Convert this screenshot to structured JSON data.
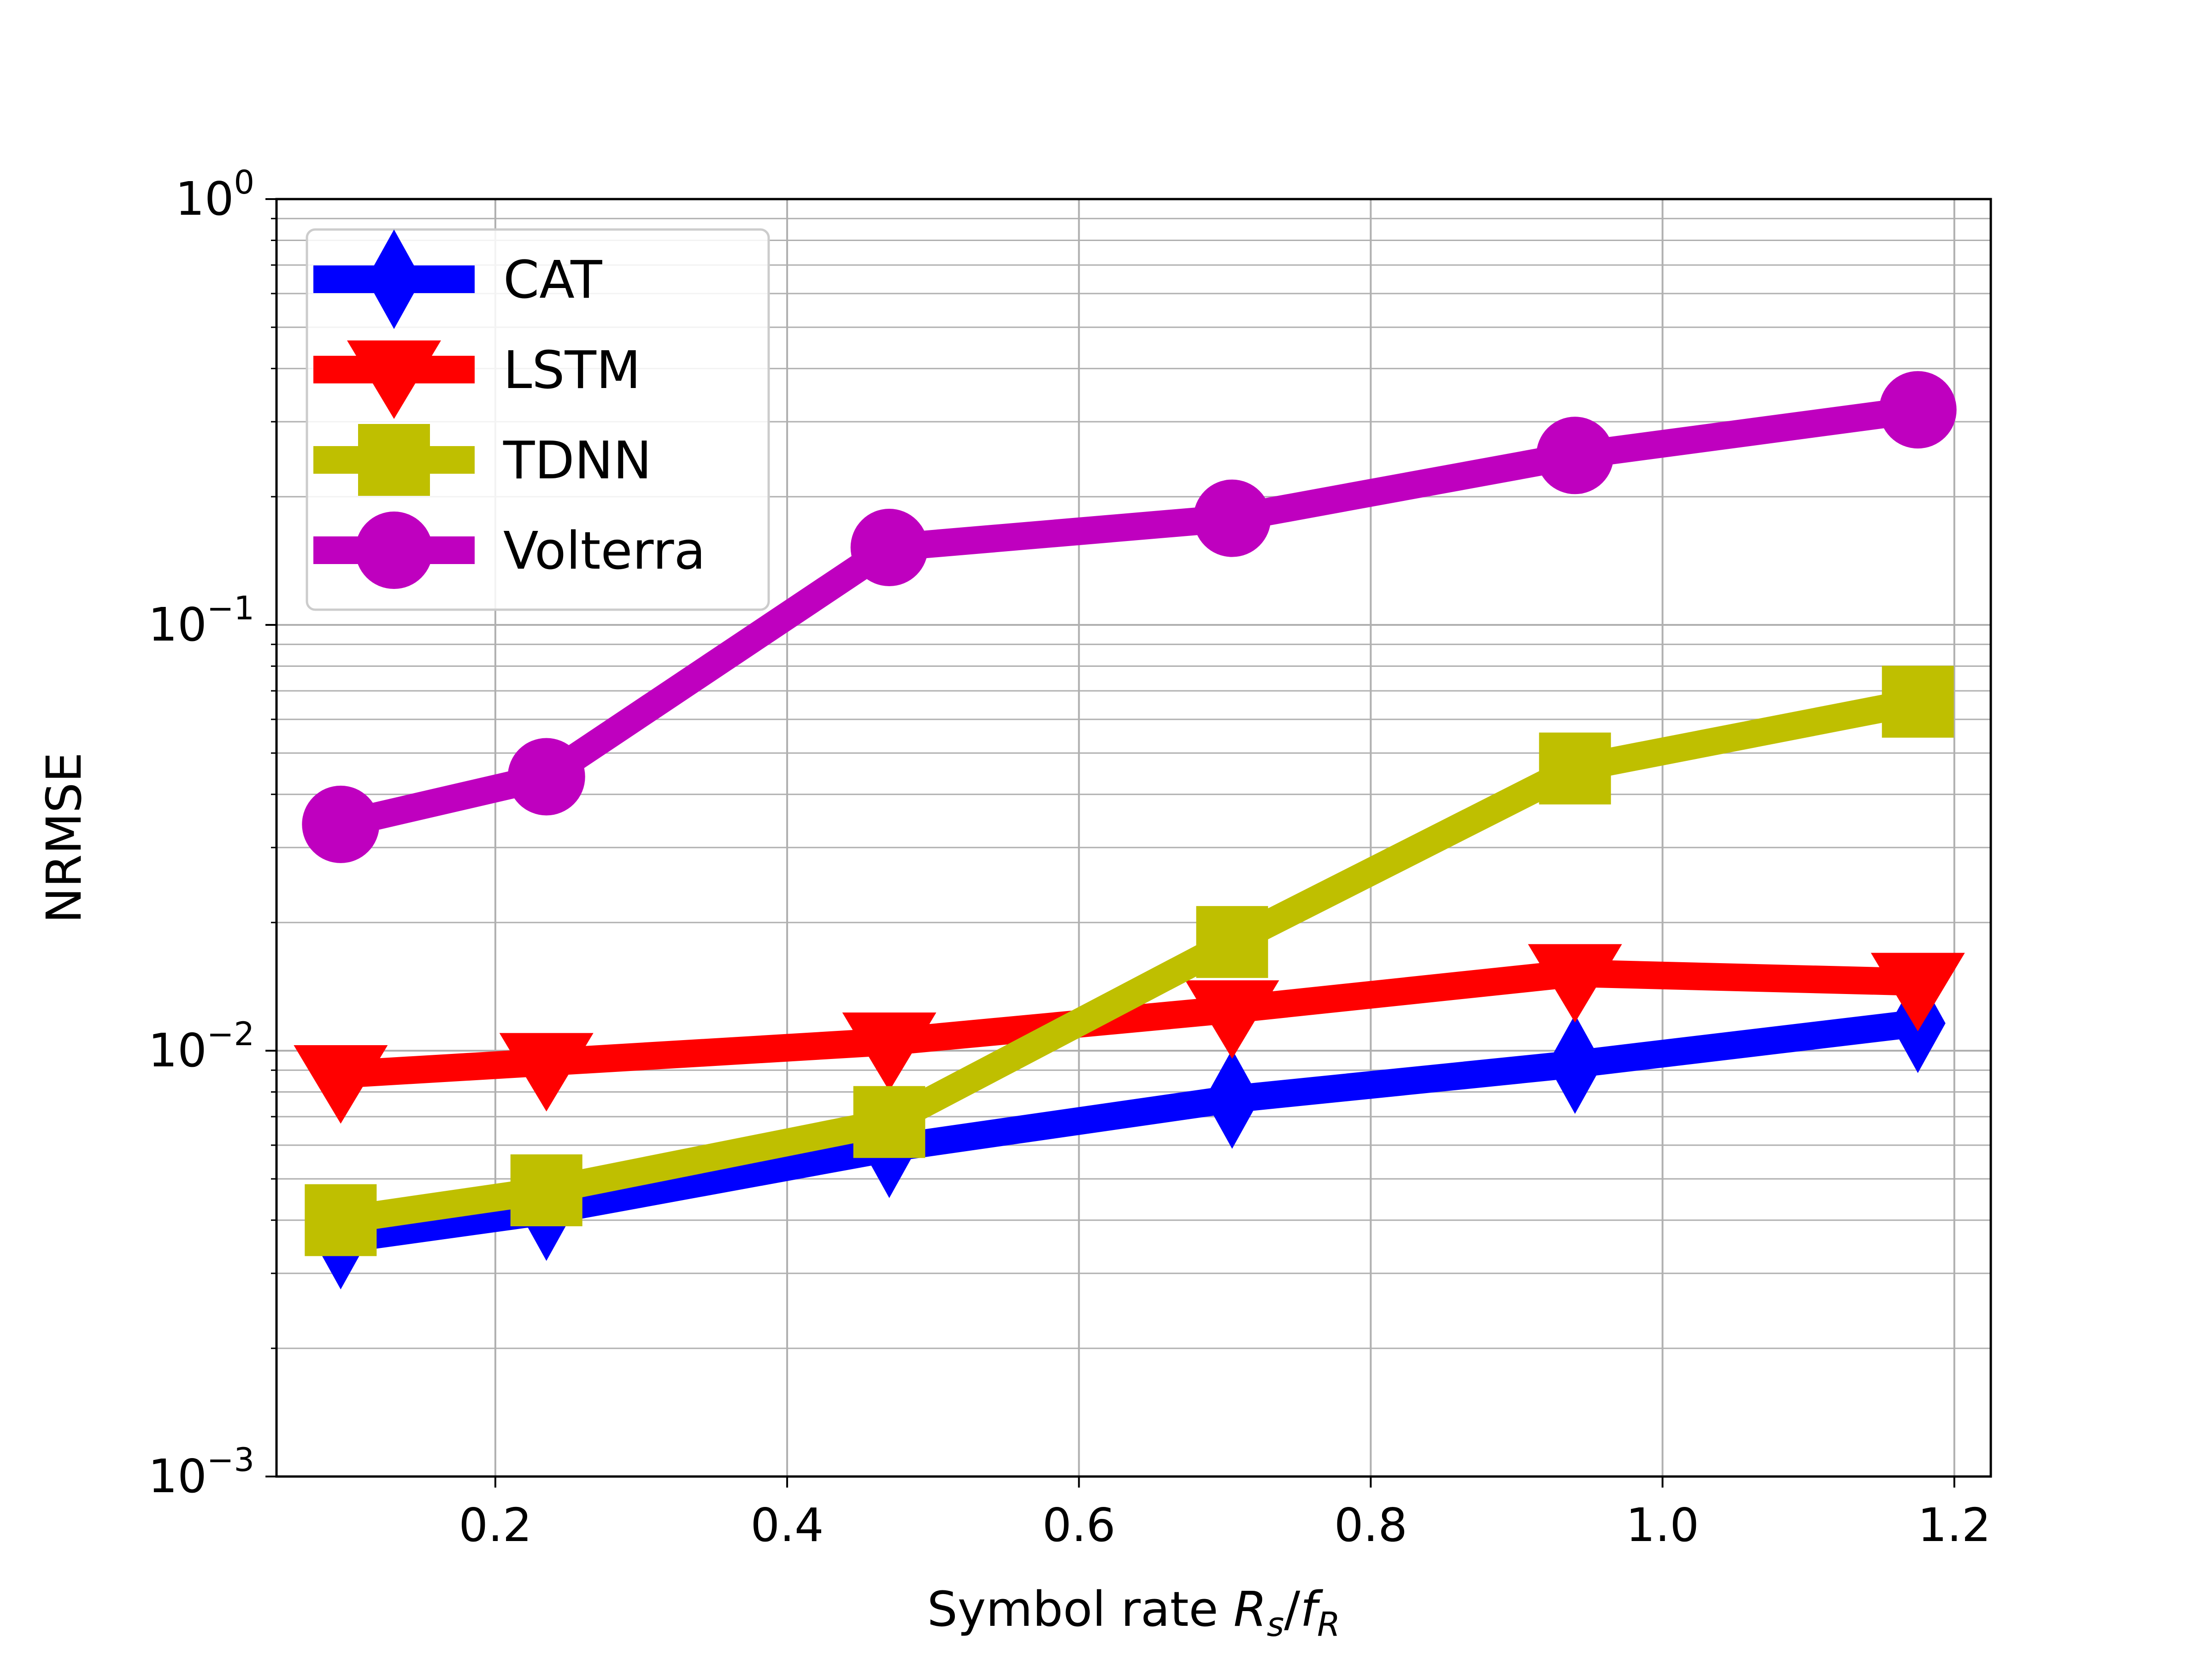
{
  "chart_data": {
    "type": "line",
    "title": "",
    "xlabel": "Symbol rate ",
    "xlabel_math": {
      "R": "R",
      "s": "s",
      "slash": "/",
      "f": "f",
      "R_sub": "R"
    },
    "ylabel": "NRMSE",
    "xlim": [
      0.05,
      1.225
    ],
    "ylim": [
      0.001,
      1
    ],
    "yscale": "log",
    "xticks": [
      "0.2",
      "0.4",
      "0.6",
      "0.8",
      "1.0",
      "1.2"
    ],
    "xtick_values": [
      0.2,
      0.4,
      0.6,
      0.8,
      1.0,
      1.2
    ],
    "yticks": [
      {
        "value": 0.001,
        "base": "10",
        "exp": "−3"
      },
      {
        "value": 0.01,
        "base": "10",
        "exp": "−2"
      },
      {
        "value": 0.1,
        "base": "10",
        "exp": "−1"
      },
      {
        "value": 1,
        "base": "10",
        "exp": "0"
      }
    ],
    "grid": true,
    "legend_position": "top-left",
    "x": [
      0.094,
      0.235,
      0.47,
      0.705,
      0.94,
      1.175
    ],
    "series": [
      {
        "name": "CAT",
        "color": "#0000ff",
        "marker": "diamond",
        "values": [
          0.0036,
          0.0042,
          0.0059,
          0.0077,
          0.0093,
          0.0116
        ]
      },
      {
        "name": "LSTM",
        "color": "#ff0000",
        "marker": "triangle-down",
        "values": [
          0.0088,
          0.0094,
          0.0105,
          0.0125,
          0.0152,
          0.0145
        ]
      },
      {
        "name": "TDNN",
        "color": "#bfbf00",
        "marker": "square",
        "values": [
          0.004,
          0.0047,
          0.0068,
          0.018,
          0.046,
          0.066
        ]
      },
      {
        "name": "Volterra",
        "color": "#bf00bf",
        "marker": "circle",
        "values": [
          0.034,
          0.044,
          0.152,
          0.178,
          0.25,
          0.32
        ]
      }
    ]
  }
}
